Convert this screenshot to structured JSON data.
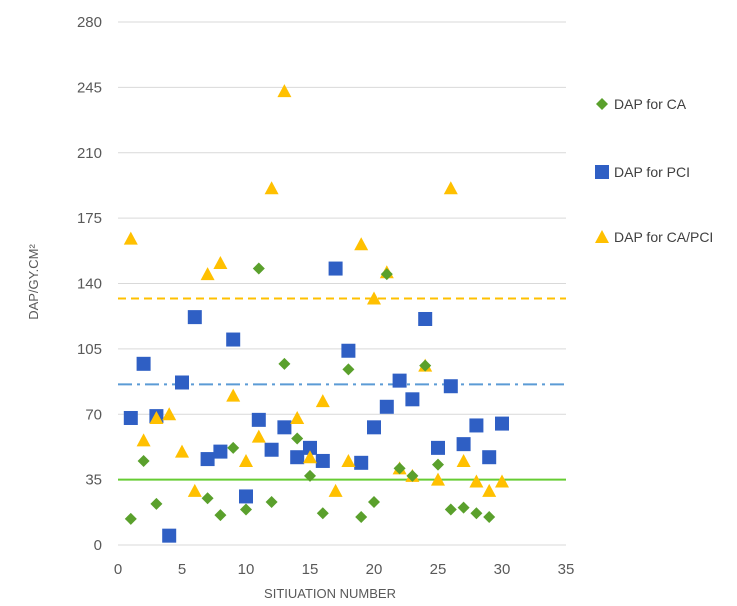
{
  "chart_data": {
    "type": "scatter",
    "title": "",
    "xlabel": "SITIUATION NUMBER",
    "ylabel": "DAP/GY.CM²",
    "xlim": [
      0,
      35
    ],
    "ylim": [
      0,
      280
    ],
    "x_ticks": [
      "0",
      "5",
      "10",
      "15",
      "20",
      "25",
      "30",
      "35"
    ],
    "y_ticks": [
      "0",
      "35",
      "70",
      "105",
      "140",
      "175",
      "210",
      "245",
      "280"
    ],
    "grid": "horizontal",
    "legend_position": "right",
    "series": [
      {
        "name": "DAP for CA",
        "marker": "diamond",
        "color": "#5aa02c",
        "points": [
          [
            1,
            14
          ],
          [
            2,
            45
          ],
          [
            3,
            22
          ],
          [
            7,
            25
          ],
          [
            8,
            16
          ],
          [
            9,
            52
          ],
          [
            10,
            19
          ],
          [
            11,
            148
          ],
          [
            12,
            23
          ],
          [
            13,
            97
          ],
          [
            14,
            57
          ],
          [
            15,
            37
          ],
          [
            16,
            17
          ],
          [
            18,
            94
          ],
          [
            19,
            15
          ],
          [
            20,
            23
          ],
          [
            21,
            145
          ],
          [
            22,
            41
          ],
          [
            23,
            37
          ],
          [
            24,
            96
          ],
          [
            25,
            43
          ],
          [
            26,
            19
          ],
          [
            27,
            20
          ],
          [
            28,
            17
          ],
          [
            29,
            15
          ]
        ]
      },
      {
        "name": "DAP for PCI",
        "marker": "square",
        "color": "#2f5fc4",
        "points": [
          [
            1,
            68
          ],
          [
            2,
            97
          ],
          [
            3,
            69
          ],
          [
            4,
            5
          ],
          [
            5,
            87
          ],
          [
            6,
            122
          ],
          [
            7,
            46
          ],
          [
            8,
            50
          ],
          [
            9,
            110
          ],
          [
            10,
            26
          ],
          [
            11,
            67
          ],
          [
            12,
            51
          ],
          [
            13,
            63
          ],
          [
            14,
            47
          ],
          [
            15,
            52
          ],
          [
            16,
            45
          ],
          [
            17,
            148
          ],
          [
            18,
            104
          ],
          [
            19,
            44
          ],
          [
            20,
            63
          ],
          [
            21,
            74
          ],
          [
            22,
            88
          ],
          [
            23,
            78
          ],
          [
            24,
            121
          ],
          [
            25,
            52
          ],
          [
            26,
            85
          ],
          [
            27,
            54
          ],
          [
            28,
            64
          ],
          [
            29,
            47
          ],
          [
            30,
            65
          ]
        ]
      },
      {
        "name": "DAP for CA/PCI",
        "marker": "triangle",
        "color": "#ffc000",
        "points": [
          [
            1,
            164
          ],
          [
            2,
            56
          ],
          [
            3,
            68
          ],
          [
            4,
            70
          ],
          [
            5,
            50
          ],
          [
            6,
            29
          ],
          [
            7,
            145
          ],
          [
            8,
            151
          ],
          [
            9,
            80
          ],
          [
            10,
            45
          ],
          [
            11,
            58
          ],
          [
            12,
            191
          ],
          [
            13,
            243
          ],
          [
            14,
            68
          ],
          [
            15,
            47
          ],
          [
            16,
            77
          ],
          [
            17,
            29
          ],
          [
            18,
            45
          ],
          [
            19,
            161
          ],
          [
            20,
            132
          ],
          [
            21,
            146
          ],
          [
            22,
            41
          ],
          [
            23,
            37
          ],
          [
            24,
            96
          ],
          [
            25,
            35
          ],
          [
            26,
            191
          ],
          [
            27,
            45
          ],
          [
            28,
            34
          ],
          [
            29,
            29
          ],
          [
            30,
            34
          ]
        ]
      }
    ],
    "reference_lines": [
      {
        "y": 132,
        "style": "dashed",
        "color": "#ffc000"
      },
      {
        "y": 86,
        "style": "dash-dot",
        "color": "#5b9bd5"
      },
      {
        "y": 35,
        "style": "solid",
        "color": "#66cc33"
      }
    ]
  }
}
